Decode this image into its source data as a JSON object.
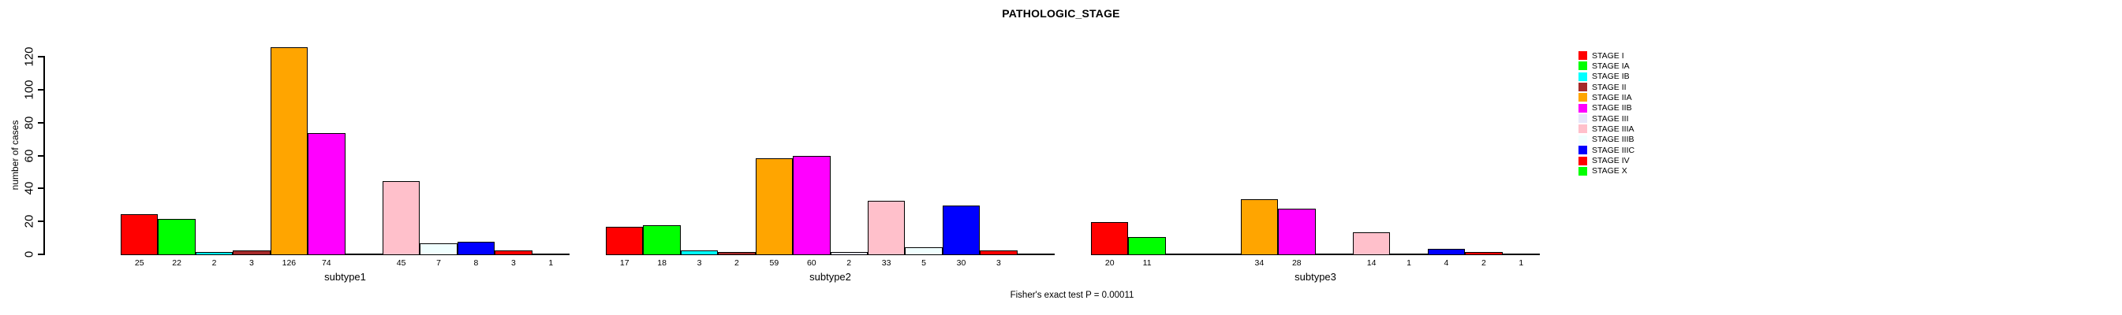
{
  "chart_data": {
    "type": "bar",
    "title": "PATHOLOGIC_STAGE",
    "ylabel": "number of cases",
    "xlabel": "",
    "ylim": [
      0,
      126
    ],
    "yticks": [
      0,
      20,
      40,
      60,
      80,
      100,
      120
    ],
    "grid": false,
    "legend_position": "right",
    "annotation": "Fisher's exact test P = 0.00011",
    "stages": [
      {
        "label": "STAGE I",
        "color": "#FF0000"
      },
      {
        "label": "STAGE IA",
        "color": "#00FF00"
      },
      {
        "label": "STAGE IB",
        "color": "#00FFFF"
      },
      {
        "label": "STAGE II",
        "color": "#A52A2A"
      },
      {
        "label": "STAGE IIA",
        "color": "#FFA500"
      },
      {
        "label": "STAGE IIB",
        "color": "#FF00FF"
      },
      {
        "label": "STAGE III",
        "color": "#E6E6FA"
      },
      {
        "label": "STAGE IIIA",
        "color": "#FFC0CB"
      },
      {
        "label": "STAGE IIIB",
        "color": "#F0FFFF"
      },
      {
        "label": "STAGE IIIC",
        "color": "#0000FF"
      },
      {
        "label": "STAGE IV",
        "color": "#FF0000"
      },
      {
        "label": "STAGE X",
        "color": "#00FF00"
      }
    ],
    "groups": [
      {
        "label": "subtype1",
        "values": [
          25,
          22,
          2,
          3,
          126,
          74,
          null,
          45,
          7,
          8,
          3,
          1
        ]
      },
      {
        "label": "subtype2",
        "values": [
          17,
          18,
          3,
          2,
          59,
          60,
          2,
          33,
          5,
          30,
          3,
          null
        ]
      },
      {
        "label": "subtype3",
        "values": [
          20,
          11,
          null,
          null,
          34,
          28,
          null,
          14,
          1,
          4,
          2,
          1
        ]
      }
    ]
  }
}
